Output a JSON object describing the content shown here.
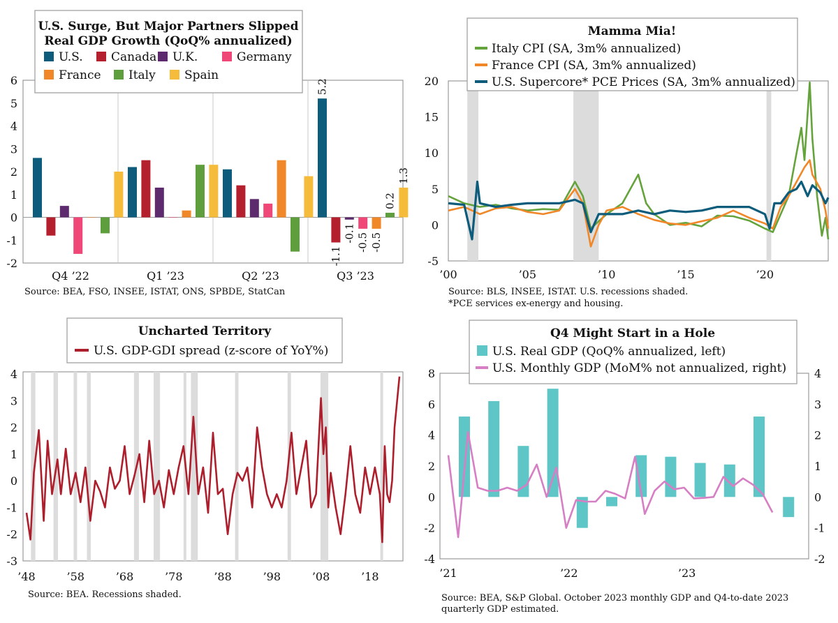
{
  "colors": {
    "us": "#0d5c7c",
    "canada": "#b5202e",
    "uk": "#5d2a6e",
    "germany": "#ef4777",
    "france": "#f0882a",
    "italy": "#5e9e3c",
    "spain": "#f5bc3c",
    "italy_cpi": "#65a33c",
    "france_cpi": "#f0882a",
    "us_supercore": "#0d5c7c",
    "gdp_gdi": "#ad1f2d",
    "real_gdp_bar": "#5ec6c6",
    "monthly_gdp": "#d67fc4",
    "recession": "#dcdcdc"
  },
  "chart_data": [
    {
      "id": "p1",
      "type": "bar",
      "title_line1": "U.S. Surge, But Major Partners Slipped",
      "title_line2": "Real GDP Growth (QoQ% annualized)",
      "source": "Source: BEA, FSO, INSEE, ISTAT, ONS, SPBDE, StatCan",
      "categories": [
        "Q4 '22",
        "Q1 '23",
        "Q2 '23",
        "Q3 '23"
      ],
      "category_labels": [
        "Q4 ’22",
        "Q1 ’23",
        "Q2 ’23",
        "Q3 ’23"
      ],
      "ylim": [
        -2,
        6
      ],
      "yticks": [
        "6",
        "5",
        "4",
        "3",
        "2",
        "1",
        "0",
        "-1",
        "-2"
      ],
      "legend": [
        "U.S.",
        "Canada",
        "U.K.",
        "Germany",
        "France",
        "Italy",
        "Spain"
      ],
      "series": [
        {
          "name": "U.S.",
          "values": [
            2.6,
            2.2,
            2.1,
            5.2
          ]
        },
        {
          "name": "Canada",
          "values": [
            -0.8,
            2.5,
            1.4,
            -1.1
          ]
        },
        {
          "name": "U.K.",
          "values": [
            0.5,
            1.3,
            0.8,
            -0.1
          ]
        },
        {
          "name": "Germany",
          "values": [
            -1.6,
            0.0,
            0.6,
            -0.5
          ]
        },
        {
          "name": "France",
          "values": [
            0.0,
            0.3,
            2.5,
            -0.5
          ]
        },
        {
          "name": "Italy",
          "values": [
            -0.7,
            2.3,
            -1.5,
            0.2
          ]
        },
        {
          "name": "Spain",
          "values": [
            2.0,
            2.3,
            1.8,
            1.3
          ]
        }
      ],
      "data_labels_q3": [
        "5.2",
        "-1.1",
        "-0.1",
        "-0.5",
        "-0.5",
        "0.2",
        "1.3"
      ]
    },
    {
      "id": "p2",
      "type": "line",
      "title": "Mamma Mia!",
      "legend": [
        "Italy CPI (SA, 3m% annualized)",
        "France CPI (SA, 3m% annualized)",
        "U.S. Supercore* PCE Prices (SA, 3m% annualized)"
      ],
      "source_line1": "Source: BLS, INSEE, ISTAT. U.S. recessions shaded.",
      "source_line2": "*PCE services ex-energy and housing.",
      "xlim": [
        2000,
        2024
      ],
      "ylim": [
        -5,
        20
      ],
      "yticks": [
        "20",
        "15",
        "10",
        "5",
        "0",
        "-5"
      ],
      "xticks": [
        "’00",
        "’05",
        "’10",
        "’15",
        "’20"
      ],
      "recessions": [
        [
          2001.2,
          2001.9
        ],
        [
          2007.9,
          2009.5
        ],
        [
          2020.1,
          2020.4
        ]
      ],
      "series": [
        {
          "name": "Italy CPI",
          "points": [
            [
              2000,
              4
            ],
            [
              2001,
              3
            ],
            [
              2002,
              2.5
            ],
            [
              2003,
              2.8
            ],
            [
              2004,
              2.3
            ],
            [
              2005,
              2
            ],
            [
              2006,
              2.2
            ],
            [
              2007,
              2.1
            ],
            [
              2008,
              6
            ],
            [
              2008.5,
              4
            ],
            [
              2009,
              -0.5
            ],
            [
              2009.5,
              0.5
            ],
            [
              2010,
              1.5
            ],
            [
              2011,
              3
            ],
            [
              2012,
              7
            ],
            [
              2012.5,
              3
            ],
            [
              2013,
              1.5
            ],
            [
              2014,
              0
            ],
            [
              2015,
              0.3
            ],
            [
              2016,
              -0.2
            ],
            [
              2017,
              1.3
            ],
            [
              2018,
              1.2
            ],
            [
              2019,
              0.6
            ],
            [
              2020,
              -0.5
            ],
            [
              2020.5,
              -1
            ],
            [
              2021,
              1.5
            ],
            [
              2021.5,
              4
            ],
            [
              2022,
              10
            ],
            [
              2022.3,
              13.5
            ],
            [
              2022.5,
              9
            ],
            [
              2022.83,
              19.8
            ],
            [
              2023,
              12
            ],
            [
              2023.3,
              4
            ],
            [
              2023.6,
              -1.5
            ],
            [
              2023.83,
              1
            ],
            [
              2024,
              -2
            ]
          ]
        },
        {
          "name": "France CPI",
          "points": [
            [
              2000,
              2
            ],
            [
              2001,
              2.5
            ],
            [
              2002,
              1.5
            ],
            [
              2003,
              2.3
            ],
            [
              2004,
              2.5
            ],
            [
              2005,
              1.8
            ],
            [
              2006,
              1.5
            ],
            [
              2007,
              2
            ],
            [
              2008,
              5
            ],
            [
              2008.5,
              3
            ],
            [
              2009,
              -3
            ],
            [
              2009.5,
              0
            ],
            [
              2010,
              2
            ],
            [
              2011,
              2.5
            ],
            [
              2012,
              1.5
            ],
            [
              2013,
              0.7
            ],
            [
              2014,
              0.2
            ],
            [
              2015,
              0
            ],
            [
              2016,
              0.5
            ],
            [
              2017,
              1
            ],
            [
              2018,
              2
            ],
            [
              2019,
              1
            ],
            [
              2020,
              0.2
            ],
            [
              2020.5,
              -0.5
            ],
            [
              2021,
              2.5
            ],
            [
              2021.5,
              4
            ],
            [
              2022,
              6
            ],
            [
              2022.5,
              8
            ],
            [
              2022.83,
              9
            ],
            [
              2023,
              7
            ],
            [
              2023.5,
              5
            ],
            [
              2023.83,
              2
            ],
            [
              2024,
              -0.5
            ]
          ]
        },
        {
          "name": "U.S. Supercore PCE Prices",
          "points": [
            [
              2000,
              3
            ],
            [
              2001,
              2.8
            ],
            [
              2001.5,
              -2
            ],
            [
              2001.83,
              6
            ],
            [
              2002,
              3
            ],
            [
              2003,
              2.5
            ],
            [
              2004,
              2.8
            ],
            [
              2005,
              3
            ],
            [
              2006,
              3
            ],
            [
              2007,
              3
            ],
            [
              2008,
              3.5
            ],
            [
              2008.5,
              3
            ],
            [
              2009,
              -1
            ],
            [
              2009.5,
              1.5
            ],
            [
              2010,
              1.5
            ],
            [
              2011,
              1.5
            ],
            [
              2012,
              2
            ],
            [
              2013,
              1.5
            ],
            [
              2014,
              2
            ],
            [
              2015,
              1.8
            ],
            [
              2016,
              2
            ],
            [
              2017,
              2.5
            ],
            [
              2018,
              2.5
            ],
            [
              2019,
              2.5
            ],
            [
              2020,
              1.5
            ],
            [
              2020.3,
              -0.5
            ],
            [
              2020.6,
              3
            ],
            [
              2021,
              3
            ],
            [
              2021.5,
              4.5
            ],
            [
              2022,
              5
            ],
            [
              2022.3,
              6
            ],
            [
              2022.7,
              4
            ],
            [
              2023,
              5.5
            ],
            [
              2023.5,
              4.5
            ],
            [
              2023.83,
              3
            ],
            [
              2024,
              3.8
            ]
          ]
        }
      ]
    },
    {
      "id": "p3",
      "type": "line",
      "title": "Uncharted Territory",
      "legend": [
        "U.S. GDP-GDI spread (z-score of YoY%)"
      ],
      "source": "Source: BEA. Recessions shaded.",
      "xlim": [
        1948,
        2024
      ],
      "ylim": [
        -3,
        4
      ],
      "yticks": [
        "4",
        "3",
        "2",
        "1",
        "0",
        "-1",
        "-2",
        "-3"
      ],
      "xticks": [
        "’48",
        "’58",
        "’68",
        "’78",
        "’88",
        "’98",
        "’08",
        "’18"
      ],
      "recessions": [
        [
          1948.9,
          1949.8
        ],
        [
          1953.5,
          1954.4
        ],
        [
          1957.6,
          1958.3
        ],
        [
          1960.3,
          1961.1
        ],
        [
          1969.9,
          1970.9
        ],
        [
          1973.9,
          1975.2
        ],
        [
          1980.0,
          1980.5
        ],
        [
          1981.5,
          1982.9
        ],
        [
          1990.5,
          1991.2
        ],
        [
          2001.2,
          2001.9
        ],
        [
          2007.9,
          2009.5
        ],
        [
          2020.1,
          2020.4
        ]
      ],
      "series": [
        {
          "name": "U.S. GDP-GDI spread",
          "points": [
            [
              1948,
              -1.2
            ],
            [
              1948.8,
              -2.2
            ],
            [
              1949.5,
              0.3
            ],
            [
              1950.5,
              1.9
            ],
            [
              1951.5,
              -1.5
            ],
            [
              1952.3,
              1.5
            ],
            [
              1953.2,
              -0.5
            ],
            [
              1954.3,
              0.8
            ],
            [
              1955,
              -0.5
            ],
            [
              1956,
              1.2
            ],
            [
              1957,
              -0.5
            ],
            [
              1958,
              0.3
            ],
            [
              1959,
              -0.8
            ],
            [
              1960,
              0.5
            ],
            [
              1961,
              -1.5
            ],
            [
              1962,
              0
            ],
            [
              1963,
              -0.4
            ],
            [
              1964,
              -1
            ],
            [
              1965,
              0.5
            ],
            [
              1966,
              -0.3
            ],
            [
              1967,
              0
            ],
            [
              1968,
              1.3
            ],
            [
              1969,
              -0.5
            ],
            [
              1970,
              0.2
            ],
            [
              1971,
              1
            ],
            [
              1972,
              -0.8
            ],
            [
              1973,
              1.5
            ],
            [
              1974,
              -0.5
            ],
            [
              1975,
              0
            ],
            [
              1976,
              -1
            ],
            [
              1977,
              0.4
            ],
            [
              1978,
              -0.5
            ],
            [
              1979,
              0.5
            ],
            [
              1980,
              1.3
            ],
            [
              1981,
              -0.5
            ],
            [
              1982,
              2.4
            ],
            [
              1983,
              -0.5
            ],
            [
              1984,
              0.5
            ],
            [
              1985,
              -1.2
            ],
            [
              1986,
              1.8
            ],
            [
              1987,
              -0.5
            ],
            [
              1988,
              -0.3
            ],
            [
              1989,
              -2
            ],
            [
              1990,
              -0.5
            ],
            [
              1991,
              0.3
            ],
            [
              1992,
              0
            ],
            [
              1993,
              0.5
            ],
            [
              1994,
              -1
            ],
            [
              1995,
              2
            ],
            [
              1996,
              0.5
            ],
            [
              1997,
              -0.5
            ],
            [
              1998,
              -1
            ],
            [
              1999,
              -0.5
            ],
            [
              2000,
              -1
            ],
            [
              2001,
              0
            ],
            [
              2002,
              1.8
            ],
            [
              2003,
              -0.5
            ],
            [
              2004,
              0.5
            ],
            [
              2005,
              1.5
            ],
            [
              2006,
              -1
            ],
            [
              2007,
              -0.5
            ],
            [
              2008,
              3.1
            ],
            [
              2008.5,
              1
            ],
            [
              2009,
              2
            ],
            [
              2009.5,
              -1
            ],
            [
              2010,
              0.3
            ],
            [
              2011,
              -1
            ],
            [
              2012,
              -2
            ],
            [
              2013,
              -0.5
            ],
            [
              2014,
              1.3
            ],
            [
              2015,
              -0.5
            ],
            [
              2016,
              -1.2
            ],
            [
              2017,
              0.5
            ],
            [
              2018,
              -0.5
            ],
            [
              2019,
              0.5
            ],
            [
              2020,
              -0.5
            ],
            [
              2020.5,
              -2.3
            ],
            [
              2021,
              1.3
            ],
            [
              2021.5,
              -0.5
            ],
            [
              2022,
              -0.8
            ],
            [
              2022.5,
              0
            ],
            [
              2023,
              2
            ],
            [
              2024,
              3.9
            ]
          ]
        }
      ]
    },
    {
      "id": "p4",
      "type": "bar+line",
      "title": "Q4 Might Start in a Hole",
      "legend": [
        "U.S. Real GDP (QoQ% annualized, left)",
        "U.S. Monthly GDP (MoM% not annualized, right)"
      ],
      "source_line1": "Source: BEA, S&P Global. October 2023 monthly GDP and Q4-to-date 2023",
      "source_line2": "quarterly GDP estimated.",
      "xlim": [
        2021,
        2024
      ],
      "ylim_left": [
        -4,
        8
      ],
      "ylim_right": [
        -2,
        4
      ],
      "yticks_left": [
        "8",
        "6",
        "4",
        "2",
        "0",
        "-2",
        "-4"
      ],
      "yticks_right": [
        "4",
        "3",
        "2",
        "1",
        "0",
        "-1",
        "-2"
      ],
      "xticks": [
        "’21",
        "’22",
        "’23"
      ],
      "bars": [
        {
          "x": "2021Q1",
          "value": 5.2
        },
        {
          "x": "2021Q2",
          "value": 6.2
        },
        {
          "x": "2021Q3",
          "value": 3.3
        },
        {
          "x": "2021Q4",
          "value": 7.0
        },
        {
          "x": "2022Q1",
          "value": -2.0
        },
        {
          "x": "2022Q2",
          "value": -0.6
        },
        {
          "x": "2022Q3",
          "value": 2.7
        },
        {
          "x": "2022Q4",
          "value": 2.6
        },
        {
          "x": "2023Q1",
          "value": 2.2
        },
        {
          "x": "2023Q2",
          "value": 2.1
        },
        {
          "x": "2023Q3",
          "value": 5.2
        },
        {
          "x": "2023Q4",
          "value": -1.3
        }
      ],
      "line": [
        1.35,
        -1.3,
        2.1,
        0.3,
        0.2,
        0.2,
        0.3,
        0.2,
        0.4,
        1.05,
        0.0,
        0.95,
        -1.0,
        -0.1,
        -0.15,
        -0.15,
        0.2,
        0.1,
        -0.05,
        1.3,
        -0.55,
        0.2,
        0.5,
        0.25,
        0.3,
        -0.05,
        -0.03,
        0.0,
        0.65,
        0.35,
        0.6,
        0.4,
        0.1,
        -0.5
      ]
    }
  ]
}
